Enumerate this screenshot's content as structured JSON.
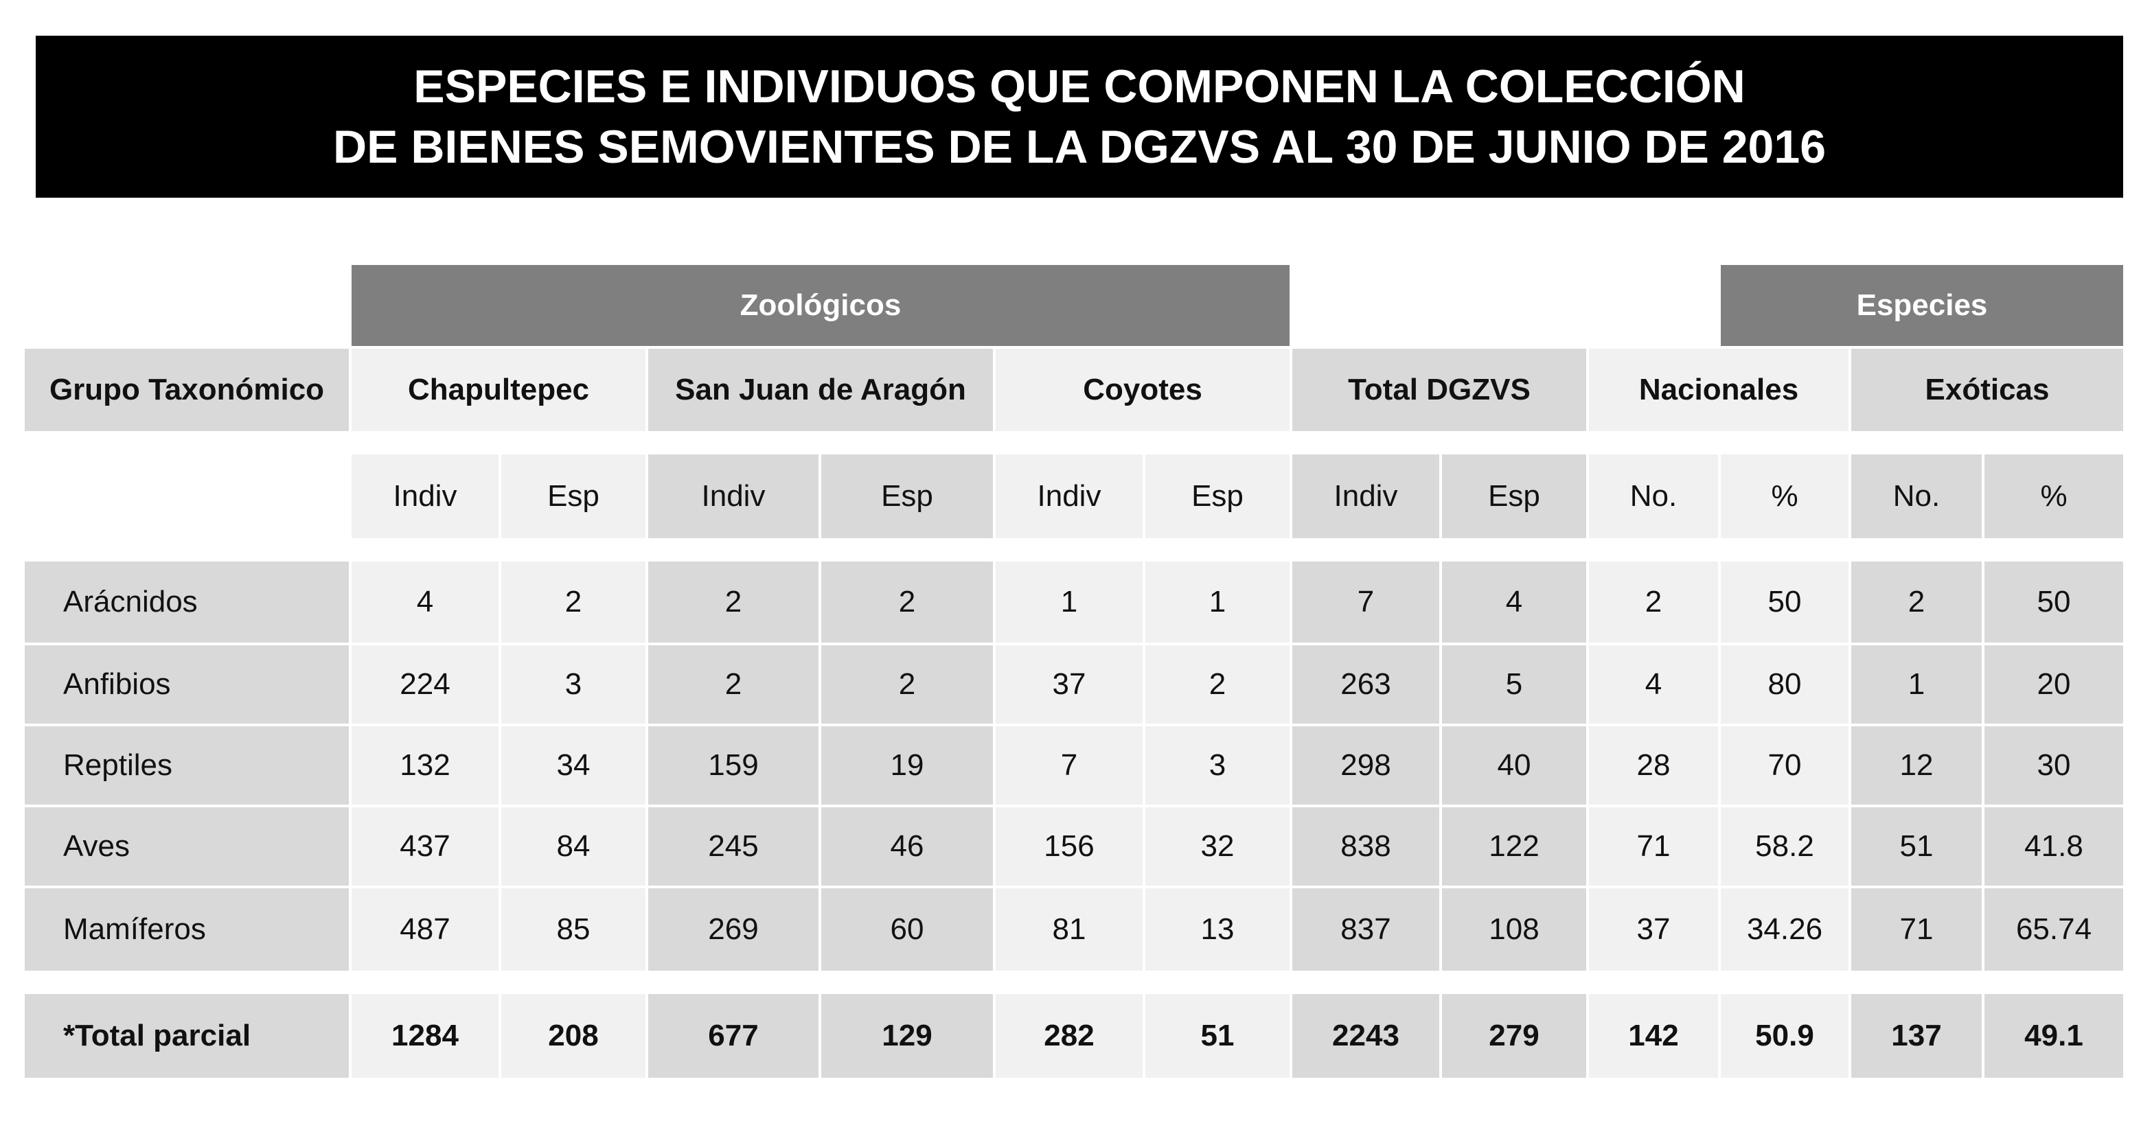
{
  "title": {
    "line1": "ESPECIES E INDIVIDUOS QUE COMPONEN LA COLECCIÓN",
    "line2": "DE BIENES SEMOVIENTES DE LA DGZVS AL 30 DE JUNIO DE 2016"
  },
  "group_headers": {
    "zoologicos": "Zoológicos",
    "especies": "Especies"
  },
  "column_headers": {
    "grupo": "Grupo Taxonómico",
    "chapultepec": "Chapultepec",
    "aragon": "San Juan de Aragón",
    "coyotes": "Coyotes",
    "total": "Total DGZVS",
    "nacionales": "Nacionales",
    "exoticas": "Exóticas"
  },
  "sub_headers": [
    "Indiv",
    "Esp",
    "Indiv",
    "Esp",
    "Indiv",
    "Esp",
    "Indiv",
    "Esp",
    "No.",
    "%",
    "No.",
    "%"
  ],
  "rows": [
    {
      "label": "Arácnidos",
      "values": [
        "4",
        "2",
        "2",
        "2",
        "1",
        "1",
        "7",
        "4",
        "2",
        "50",
        "2",
        "50"
      ]
    },
    {
      "label": "Anfibios",
      "values": [
        "224",
        "3",
        "2",
        "2",
        "37",
        "2",
        "263",
        "5",
        "4",
        "80",
        "1",
        "20"
      ]
    },
    {
      "label": "Reptiles",
      "values": [
        "132",
        "34",
        "159",
        "19",
        "7",
        "3",
        "298",
        "40",
        "28",
        "70",
        "12",
        "30"
      ]
    },
    {
      "label": "Aves",
      "values": [
        "437",
        "84",
        "245",
        "46",
        "156",
        "32",
        "838",
        "122",
        "71",
        "58.2",
        "51",
        "41.8"
      ]
    },
    {
      "label": "Mamíferos",
      "values": [
        "487",
        "85",
        "269",
        "60",
        "81",
        "13",
        "837",
        "108",
        "37",
        "34.26",
        "71",
        "65.74"
      ]
    }
  ],
  "total_row": {
    "label": "*Total parcial",
    "values": [
      "1284",
      "208",
      "677",
      "129",
      "282",
      "51",
      "2243",
      "279",
      "142",
      "50.9",
      "137",
      "49.1"
    ]
  }
}
